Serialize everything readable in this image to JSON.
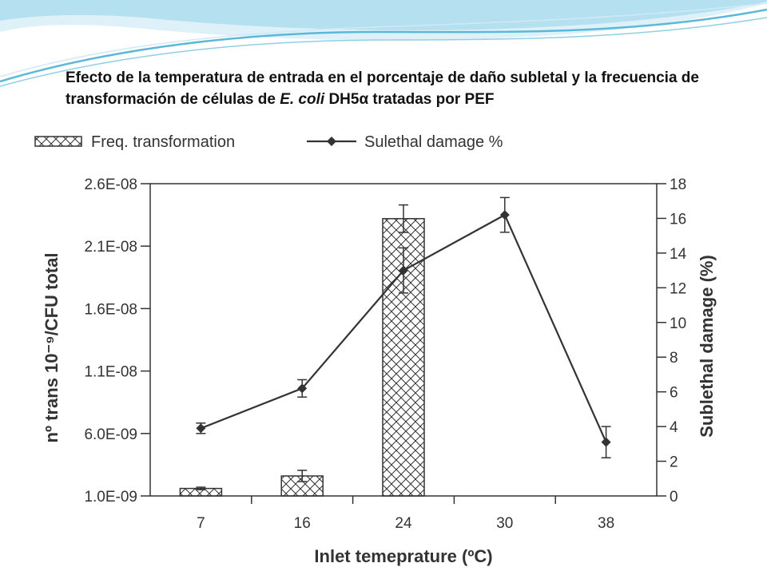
{
  "slide": {
    "title_part1": "Efecto de la temperatura de entrada en el porcentaje de daño subletal y la frecuencia de transformación de células de ",
    "title_italic": "E. coli",
    "title_part2": " DH5",
    "title_alpha": "α",
    "title_part3": " tratadas por PEF",
    "accent_color": "#5bb8d8"
  },
  "chart_data": {
    "type": "bar+line",
    "categories": [
      "7",
      "16",
      "24",
      "30",
      "38"
    ],
    "xlabel": "Inlet temeprature (ºC)",
    "ylabel_left": "nº trans 10⁻⁹/CFU total",
    "ylabel_right": "Sublethal damage (%)",
    "y_left_ticks": [
      "2.6E-08",
      "2.1E-08",
      "1.6E-08",
      "1.1E-08",
      "6.0E-09",
      "1.0E-09"
    ],
    "y_left_range": [
      1e-09,
      2.6e-08
    ],
    "y_right_ticks": [
      "18",
      "16",
      "14",
      "12",
      "10",
      "8",
      "6",
      "4",
      "2",
      "0"
    ],
    "y_right_range": [
      0,
      18
    ],
    "grid": false,
    "legend_position": "top",
    "series": [
      {
        "name": "Freq. transformation",
        "kind": "bar",
        "axis": "left",
        "values": [
          1.6e-09,
          2.6e-09,
          2.32e-08,
          null,
          null
        ],
        "errors": [
          1e-10,
          4.5e-10,
          1.1e-09,
          null,
          null
        ]
      },
      {
        "name": "Sulethal damage %",
        "kind": "line",
        "axis": "right",
        "values": [
          3.9,
          6.2,
          13.0,
          16.2,
          3.1
        ],
        "errors": [
          0.3,
          0.5,
          1.3,
          1.0,
          0.9
        ]
      }
    ]
  }
}
